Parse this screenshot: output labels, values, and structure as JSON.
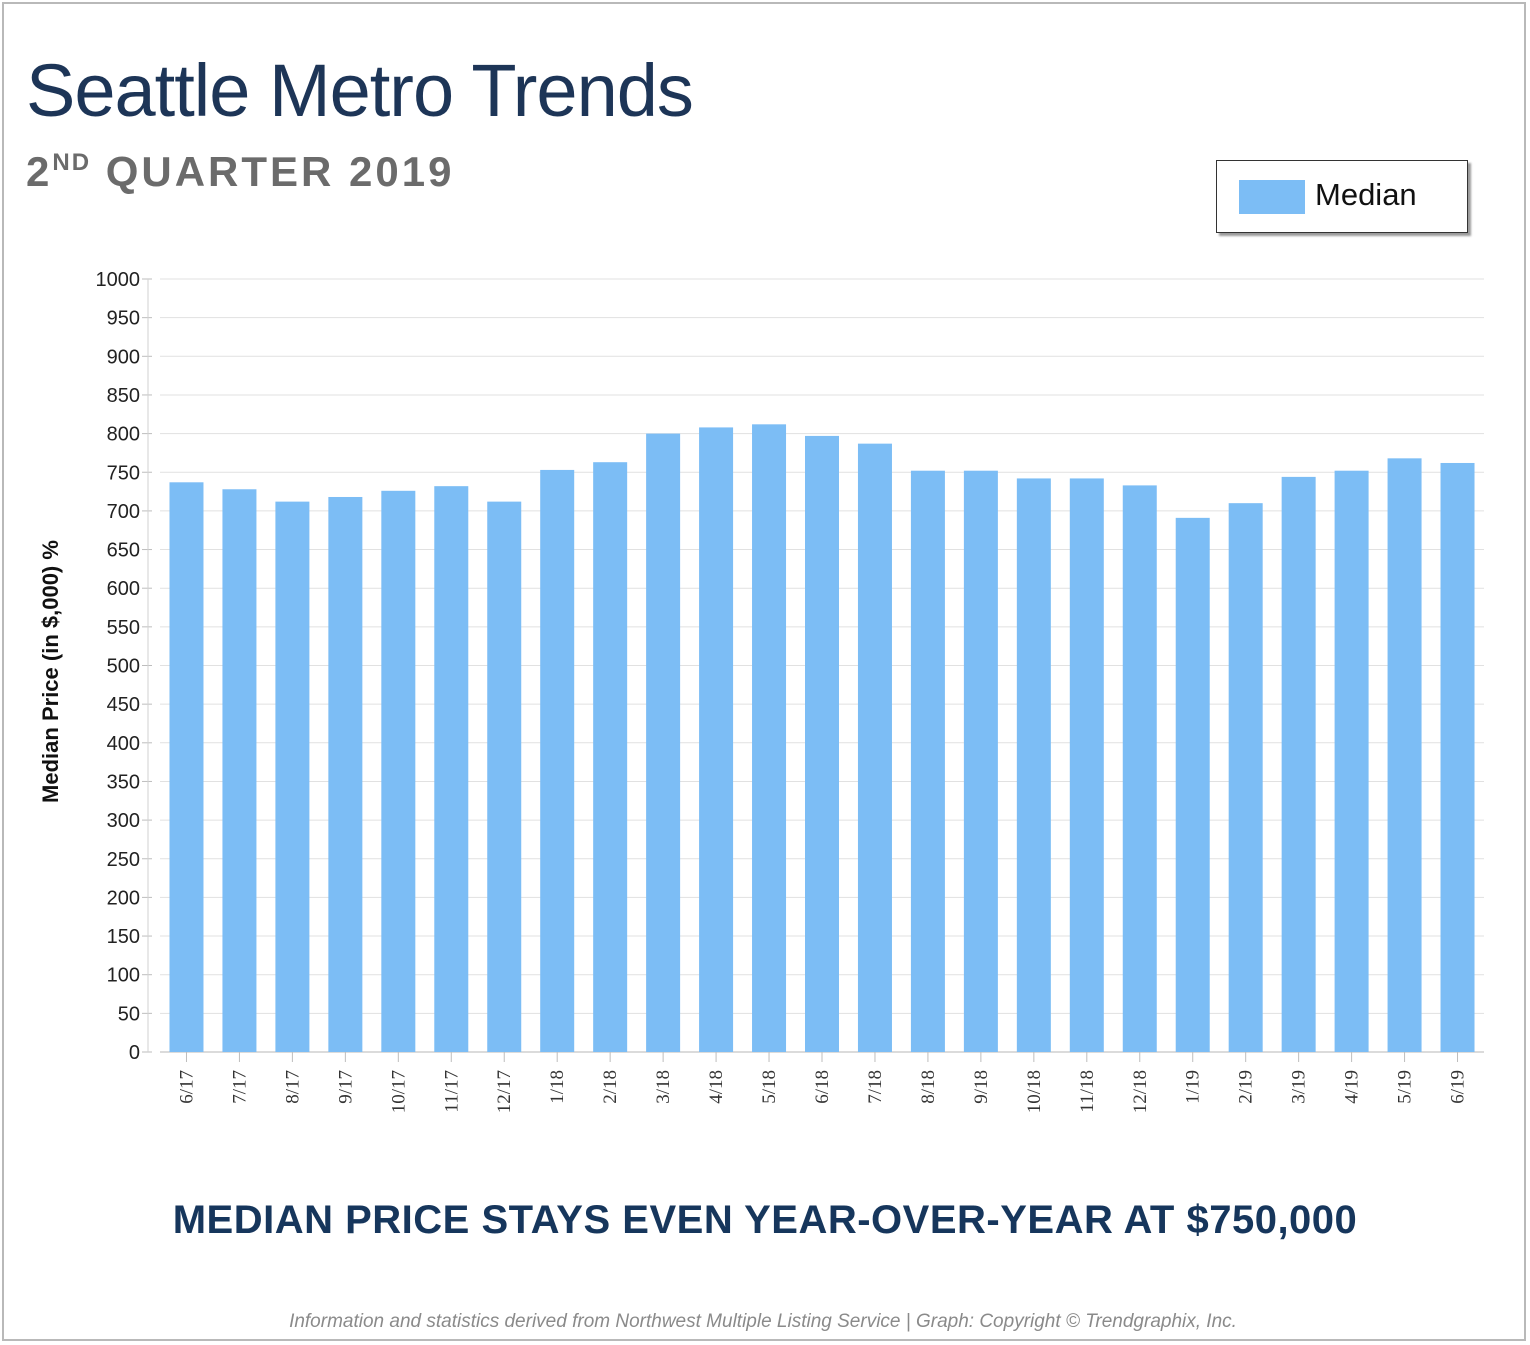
{
  "header": {
    "title": "Seattle Metro Trends",
    "subtitle_ordinal": "2",
    "subtitle_suffix": "ND",
    "subtitle_rest": " QUARTER 2019"
  },
  "colors": {
    "bar": "#7cbdf5",
    "title": "#1d3557",
    "headline": "#16365c"
  },
  "chart_data": {
    "type": "bar",
    "title": "",
    "xlabel": "",
    "ylabel": "Median Price (in $,000) %",
    "ylim": [
      0,
      1000
    ],
    "yticks": [
      0,
      50,
      100,
      150,
      200,
      250,
      300,
      350,
      400,
      450,
      500,
      550,
      600,
      650,
      700,
      750,
      800,
      850,
      900,
      950,
      1000
    ],
    "grid": true,
    "legend_position": "top-right",
    "categories": [
      "6/17",
      "7/17",
      "8/17",
      "9/17",
      "10/17",
      "11/17",
      "12/17",
      "1/18",
      "2/18",
      "3/18",
      "4/18",
      "5/18",
      "6/18",
      "7/18",
      "8/18",
      "9/18",
      "10/18",
      "11/18",
      "12/18",
      "1/19",
      "2/19",
      "3/19",
      "4/19",
      "5/19",
      "6/19"
    ],
    "series": [
      {
        "name": "Median",
        "values": [
          737,
          728,
          712,
          718,
          726,
          732,
          712,
          753,
          763,
          800,
          808,
          812,
          797,
          787,
          752,
          752,
          742,
          742,
          733,
          691,
          710,
          744,
          752,
          768,
          762
        ]
      }
    ]
  },
  "headline": "MEDIAN PRICE STAYS EVEN YEAR-OVER-YEAR AT $750,000",
  "footer": "Information and statistics derived from Northwest Multiple Listing Service  |  Graph: Copyright © Trendgraphix, Inc."
}
